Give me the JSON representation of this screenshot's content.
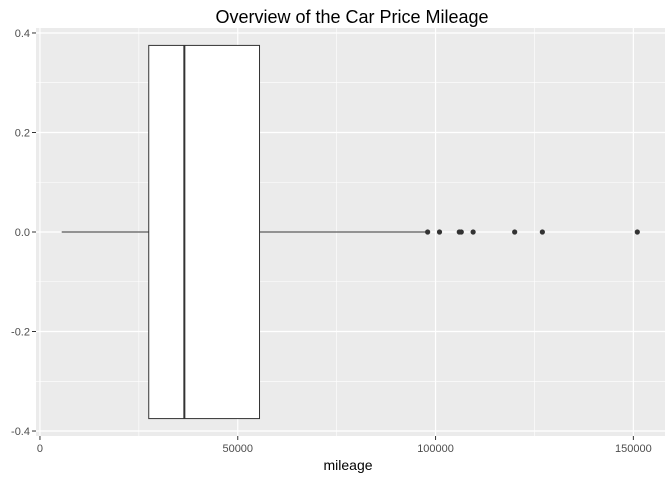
{
  "chart_data": {
    "type": "boxplot",
    "title": "Overview of the Car Price Mileage",
    "xlabel": "mileage",
    "ylabel": "",
    "xlim": [
      -1000,
      158000
    ],
    "ylim": [
      -0.41,
      0.41
    ],
    "x_ticks": [
      0,
      50000,
      100000,
      150000
    ],
    "x_tick_labels": [
      "0",
      "50000",
      "100000",
      "150000"
    ],
    "y_ticks": [
      -0.4,
      -0.2,
      0.0,
      0.2,
      0.4
    ],
    "y_tick_labels": [
      "-0.4",
      "-0.2",
      "0.0",
      "0.2",
      "0.4"
    ],
    "grid": true,
    "box": {
      "whisker_low": 5500,
      "q1": 27500,
      "median": 36500,
      "q3": 55500,
      "whisker_high": 97500,
      "ymin": -0.375,
      "ymax": 0.375,
      "y_center": 0.0
    },
    "outliers": [
      98000,
      101000,
      106000,
      106500,
      109500,
      120000,
      127000,
      151000
    ],
    "colors": {
      "panel": "#ebebeb",
      "grid_major": "#ffffff",
      "box_fill": "#ffffff",
      "box_stroke": "#333333",
      "outlier": "#333333"
    }
  }
}
